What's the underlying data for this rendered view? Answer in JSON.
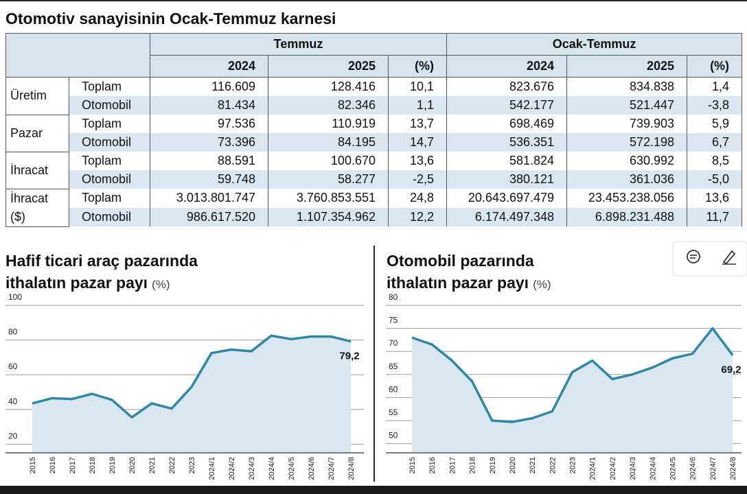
{
  "header": {
    "title": "Otomotiv sanayisinin Ocak-Temmuz karnesi"
  },
  "table": {
    "col_groups": [
      "Temmuz",
      "Ocak-Temmuz"
    ],
    "columns": [
      "2024",
      "2025",
      "(%)",
      "2024",
      "2025",
      "(%)"
    ],
    "groups": [
      {
        "label": "Üretim",
        "rows": [
          {
            "label": "Toplam",
            "cells": [
              "116.609",
              "128.416",
              "10,1",
              "823.676",
              "834.838",
              "1,4"
            ]
          },
          {
            "label": "Otomobil",
            "cells": [
              "81.434",
              "82.346",
              "1,1",
              "542.177",
              "521.447",
              "-3,8"
            ]
          }
        ]
      },
      {
        "label": "Pazar",
        "rows": [
          {
            "label": "Toplam",
            "cells": [
              "97.536",
              "110.919",
              "13,7",
              "698.469",
              "739.903",
              "5,9"
            ]
          },
          {
            "label": "Otomobil",
            "cells": [
              "73.396",
              "84.195",
              "14,7",
              "536.351",
              "572.198",
              "6,7"
            ]
          }
        ]
      },
      {
        "label": "İhracat",
        "rows": [
          {
            "label": "Toplam",
            "cells": [
              "88.591",
              "100.670",
              "13,6",
              "581.824",
              "630.992",
              "8,5"
            ]
          },
          {
            "label": "Otomobil",
            "cells": [
              "59.748",
              "58.277",
              "-2,5",
              "380.121",
              "361.036",
              "-5,0"
            ]
          }
        ]
      },
      {
        "label": "İhracat ($)",
        "rows": [
          {
            "label": "Toplam",
            "cells": [
              "3.013.801.747",
              "3.760.853.551",
              "24,8",
              "20.643.697.479",
              "23.453.238.056",
              "13,6"
            ]
          },
          {
            "label": "Otomobil",
            "cells": [
              "986.617.520",
              "1.107.354.962",
              "12,2",
              "6.174.497.348",
              "6.898.231.488",
              "11,7"
            ]
          }
        ]
      }
    ]
  },
  "chart_data": [
    {
      "type": "line",
      "title": [
        "Hafif ticari araç pazarında",
        "ithalatın pazar payı"
      ],
      "unit": "(%)",
      "categories": [
        "2015",
        "2016",
        "2017",
        "2018",
        "2019",
        "2020",
        "2021",
        "2022",
        "2023",
        "2024/1",
        "2024/2",
        "2024/3",
        "2024/4",
        "2024/5",
        "2024/6",
        "2024/7",
        "2024/8"
      ],
      "values": [
        43.5,
        46.5,
        46,
        49,
        45.5,
        35.5,
        43.5,
        40.5,
        53,
        72.5,
        74.5,
        73.5,
        82.5,
        80.5,
        82,
        82,
        79.2
      ],
      "value_labels": [
        null,
        null,
        null,
        null,
        null,
        null,
        null,
        null,
        null,
        null,
        null,
        null,
        null,
        null,
        null,
        null,
        "79,2"
      ],
      "ylim": [
        15,
        100
      ],
      "yticks": [
        20,
        40,
        60,
        80,
        100
      ],
      "grid": true,
      "color": "#2f87a6",
      "fill": "#d8e7f0"
    },
    {
      "type": "line",
      "title": [
        "Otomobil pazarında",
        "ithalatın pazar payı"
      ],
      "unit": "(%)",
      "categories": [
        "2015",
        "2016",
        "2017",
        "2018",
        "2019",
        "2020",
        "2021",
        "2022",
        "2023",
        "2024/1",
        "2024/2",
        "2024/3",
        "2024/4",
        "2024/5",
        "2024/6",
        "2024/7",
        "2024/8"
      ],
      "values": [
        73,
        71.5,
        68,
        63.5,
        55,
        54.7,
        55.5,
        57,
        65.5,
        68,
        64,
        65,
        66.5,
        68.5,
        69.5,
        75,
        69.2
      ],
      "value_labels": [
        null,
        null,
        null,
        null,
        null,
        null,
        null,
        null,
        null,
        null,
        null,
        null,
        null,
        null,
        null,
        null,
        "69,2"
      ],
      "ylim": [
        48,
        80
      ],
      "yticks": [
        50,
        55,
        60,
        65,
        70,
        75,
        80
      ],
      "grid": true,
      "color": "#2f87a6",
      "fill": "#d8e7f0"
    }
  ]
}
